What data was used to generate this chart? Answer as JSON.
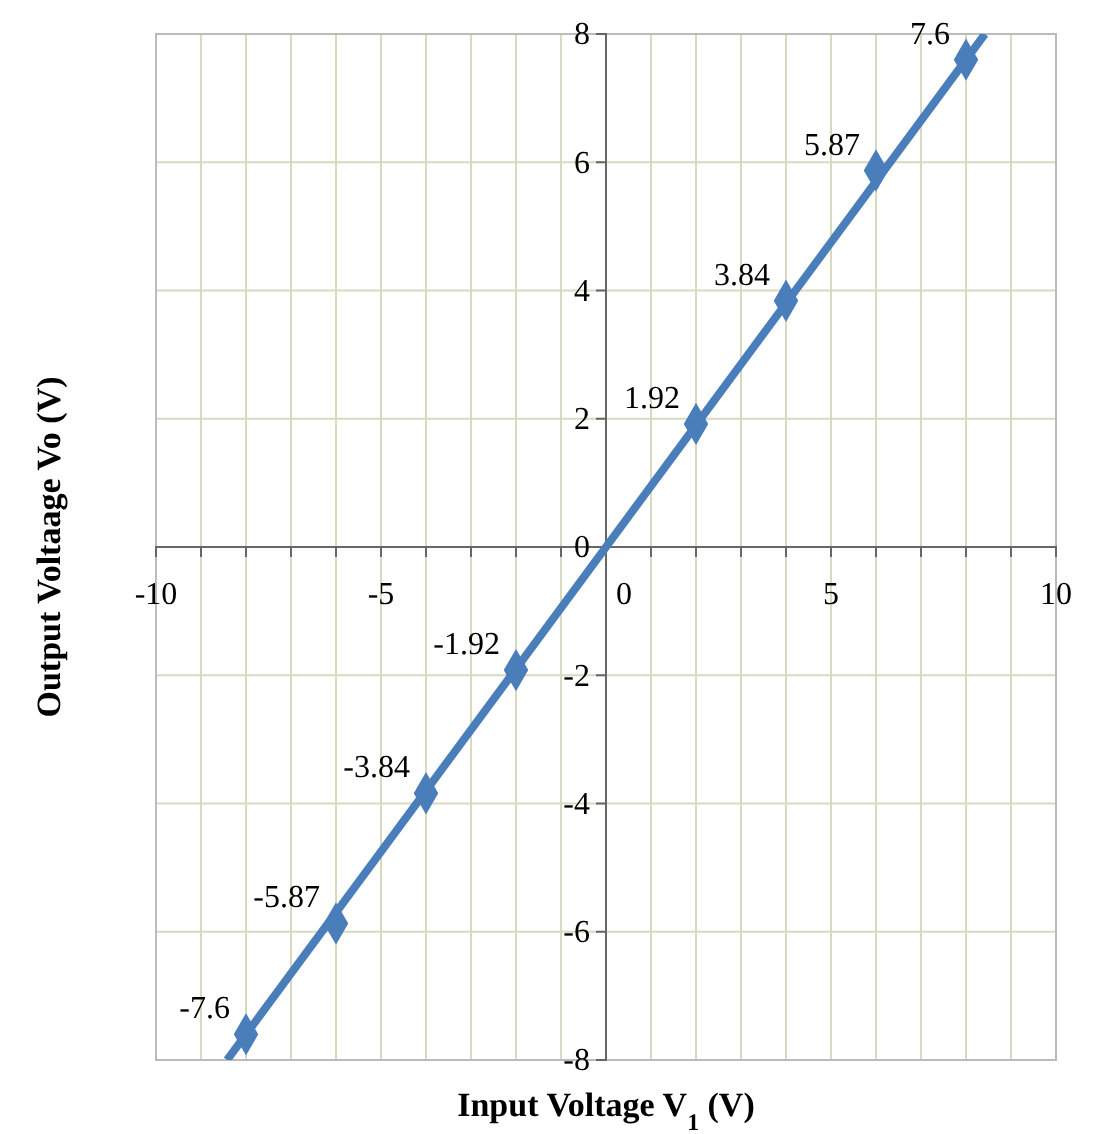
{
  "chart_data": {
    "type": "scatter",
    "xlabel": "Input Voltage V$_{1}$  (V)",
    "ylabel": "Output Voltaage Vo (V)",
    "xlim": [
      -10,
      10
    ],
    "ylim": [
      -8,
      8
    ],
    "xticks": [
      -10,
      {
        "value": -9,
        "label": null
      },
      {
        "value": -8,
        "label": null
      },
      {
        "value": -7,
        "label": null
      },
      {
        "value": -6,
        "label": null
      },
      -5,
      {
        "value": -4,
        "label": null
      },
      {
        "value": -3,
        "label": null
      },
      {
        "value": -2,
        "label": null
      },
      {
        "value": -1,
        "label": null
      },
      0,
      {
        "value": 1,
        "label": null
      },
      {
        "value": 2,
        "label": null
      },
      {
        "value": 3,
        "label": null
      },
      {
        "value": 4,
        "label": null
      },
      5,
      {
        "value": 6,
        "label": null
      },
      {
        "value": 7,
        "label": null
      },
      {
        "value": 8,
        "label": null
      },
      {
        "value": 9,
        "label": null
      },
      10
    ],
    "yticks": [
      -8,
      -6,
      -4,
      -2,
      0,
      2,
      4,
      6,
      8
    ],
    "grid": true,
    "marker": "diamond",
    "series": [
      {
        "type": "line",
        "color": "#4a7ebb",
        "x": [
          -8.42,
          8.42
        ],
        "values": [
          -8,
          8
        ],
        "marker": "none"
      },
      {
        "color": "#4a7ebb",
        "x": [
          -8,
          -6,
          -4,
          -2,
          2,
          4,
          6,
          8
        ],
        "values": [
          -7.6,
          -5.87,
          -3.84,
          -1.92,
          1.92,
          3.84,
          5.87,
          7.6
        ],
        "value_labels": [
          "-7.6",
          "-5.87",
          "-3.84",
          "-1.92",
          "1.92",
          "3.84",
          "5.87",
          "7.6"
        ]
      }
    ]
  }
}
